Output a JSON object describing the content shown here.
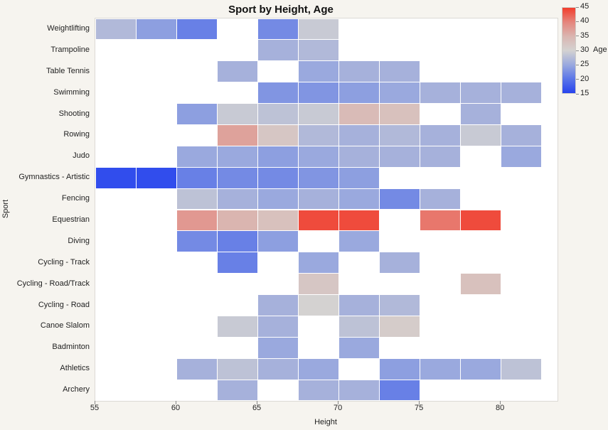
{
  "figure": {
    "background": "#f6f4ef",
    "plot_background": "#ffffff",
    "frame_color": "#dcdad5"
  },
  "chart_data": {
    "type": "heatmap",
    "title": "Sport by Height, Age",
    "xlabel": "Height",
    "ylabel": "Sport",
    "x_domain": [
      55,
      83.5
    ],
    "x_ticks": [
      55,
      60,
      65,
      70,
      75,
      80
    ],
    "bin_width": 2.5,
    "x_bins": [
      55,
      57.5,
      60,
      62.5,
      65,
      67.5,
      70,
      72.5,
      75,
      77.5,
      80
    ],
    "categories": [
      "Weightlifting",
      "Trampoline",
      "Table Tennis",
      "Swimming",
      "Shooting",
      "Rowing",
      "Judo",
      "Gymnastics - Artistic",
      "Fencing",
      "Equestrian",
      "Diving",
      "Cycling - Track",
      "Cycling - Road/Track",
      "Cycling - Road",
      "Canoe Slalom",
      "Badminton",
      "Athletics",
      "Archery"
    ],
    "values": [
      [
        27,
        24,
        21,
        null,
        22,
        29,
        null,
        null,
        null,
        null,
        null
      ],
      [
        null,
        null,
        null,
        null,
        26,
        27,
        null,
        null,
        null,
        null,
        null
      ],
      [
        null,
        null,
        null,
        26,
        null,
        25,
        26,
        26,
        null,
        null,
        null
      ],
      [
        null,
        null,
        null,
        null,
        23,
        23,
        24,
        25,
        26,
        26,
        26
      ],
      [
        null,
        null,
        24,
        29,
        28,
        29,
        34,
        33,
        null,
        26,
        null
      ],
      [
        null,
        null,
        null,
        37,
        32,
        27,
        26,
        27,
        26,
        29,
        26
      ],
      [
        null,
        null,
        25,
        25,
        24,
        25,
        26,
        26,
        26,
        null,
        25
      ],
      [
        16,
        16,
        21,
        22,
        22,
        23,
        24,
        null,
        null,
        null,
        null
      ],
      [
        null,
        null,
        28,
        26,
        25,
        26,
        25,
        22,
        26,
        null,
        null
      ],
      [
        null,
        null,
        38,
        35,
        33,
        44,
        44,
        null,
        41,
        44,
        null
      ],
      [
        null,
        null,
        22,
        21,
        24,
        null,
        25,
        null,
        null,
        null,
        null
      ],
      [
        null,
        null,
        null,
        21,
        null,
        25,
        null,
        26,
        null,
        null,
        null
      ],
      [
        null,
        null,
        null,
        null,
        null,
        32,
        null,
        null,
        null,
        33,
        null
      ],
      [
        null,
        null,
        null,
        null,
        26,
        30,
        26,
        27,
        null,
        null,
        null
      ],
      [
        null,
        null,
        null,
        29,
        26,
        null,
        28,
        31,
        null,
        null,
        null
      ],
      [
        null,
        null,
        null,
        null,
        25,
        null,
        25,
        null,
        null,
        null,
        null
      ],
      [
        null,
        null,
        26,
        28,
        26,
        25,
        null,
        24,
        25,
        25,
        28
      ],
      [
        null,
        null,
        null,
        26,
        null,
        26,
        26,
        21,
        null,
        null,
        null
      ]
    ],
    "legend": {
      "label": "Age",
      "min": 15,
      "max": 45,
      "ticks": [
        45,
        40,
        35,
        30,
        25,
        20,
        15
      ],
      "position": "top-right"
    },
    "colormap": [
      {
        "value": 15,
        "color": "#2743ee"
      },
      {
        "value": 20,
        "color": "#5b76e8"
      },
      {
        "value": 25,
        "color": "#9aa9de"
      },
      {
        "value": 30,
        "color": "#d4d2d1"
      },
      {
        "value": 35,
        "color": "#dab5b0"
      },
      {
        "value": 40,
        "color": "#e5857c"
      },
      {
        "value": 45,
        "color": "#f23d2c"
      }
    ]
  }
}
